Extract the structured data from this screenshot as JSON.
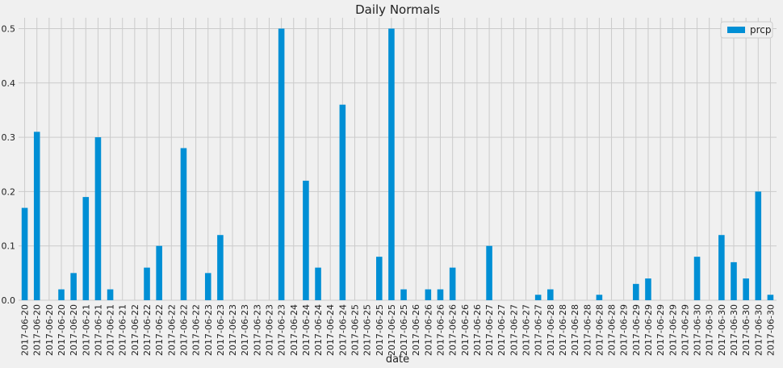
{
  "chart_data": {
    "type": "bar",
    "title": "Daily Normals",
    "xlabel": "date",
    "ylabel": "",
    "ylim": [
      0,
      0.52
    ],
    "yticks": [
      0.0,
      0.1,
      0.2,
      0.3,
      0.4,
      0.5
    ],
    "ytick_labels": [
      "0.0",
      "0.1",
      "0.2",
      "0.3",
      "0.4",
      "0.5"
    ],
    "grid": true,
    "legend_position": "top-right",
    "series": [
      {
        "name": "prcp",
        "color": "#008fd5",
        "values": [
          0.17,
          0.31,
          0.0,
          0.02,
          0.05,
          0.19,
          0.3,
          0.02,
          0.0,
          0.0,
          0.06,
          0.1,
          0.0,
          0.28,
          0.0,
          0.05,
          0.12,
          0.0,
          0.0,
          0.0,
          0.0,
          0.5,
          0.0,
          0.22,
          0.06,
          0.0,
          0.36,
          0.0,
          0.0,
          0.08,
          0.5,
          0.02,
          0.0,
          0.02,
          0.02,
          0.06,
          0.0,
          0.0,
          0.1,
          0.0,
          0.0,
          0.0,
          0.01,
          0.02,
          0.0,
          0.0,
          0.0,
          0.01,
          0.0,
          0.0,
          0.03,
          0.04,
          0.0,
          0.0,
          0.0,
          0.08,
          0.0,
          0.12,
          0.07,
          0.04,
          0.2,
          0.01
        ]
      }
    ],
    "categories": [
      "2017-06-20",
      "2017-06-20",
      "2017-06-20",
      "2017-06-20",
      "2017-06-20",
      "2017-06-21",
      "2017-06-21",
      "2017-06-21",
      "2017-06-21",
      "2017-06-22",
      "2017-06-22",
      "2017-06-22",
      "2017-06-22",
      "2017-06-22",
      "2017-06-22",
      "2017-06-23",
      "2017-06-23",
      "2017-06-23",
      "2017-06-23",
      "2017-06-23",
      "2017-06-23",
      "2017-06-23",
      "2017-06-24",
      "2017-06-24",
      "2017-06-24",
      "2017-06-24",
      "2017-06-24",
      "2017-06-25",
      "2017-06-25",
      "2017-06-25",
      "2017-06-25",
      "2017-06-25",
      "2017-06-26",
      "2017-06-26",
      "2017-06-26",
      "2017-06-26",
      "2017-06-26",
      "2017-06-26",
      "2017-06-27",
      "2017-06-27",
      "2017-06-27",
      "2017-06-27",
      "2017-06-27",
      "2017-06-28",
      "2017-06-28",
      "2017-06-28",
      "2017-06-28",
      "2017-06-28",
      "2017-06-28",
      "2017-06-29",
      "2017-06-29",
      "2017-06-29",
      "2017-06-29",
      "2017-06-29",
      "2017-06-29",
      "2017-06-30",
      "2017-06-30",
      "2017-06-30",
      "2017-06-30",
      "2017-06-30",
      "2017-06-30",
      "2017-06-30"
    ]
  }
}
